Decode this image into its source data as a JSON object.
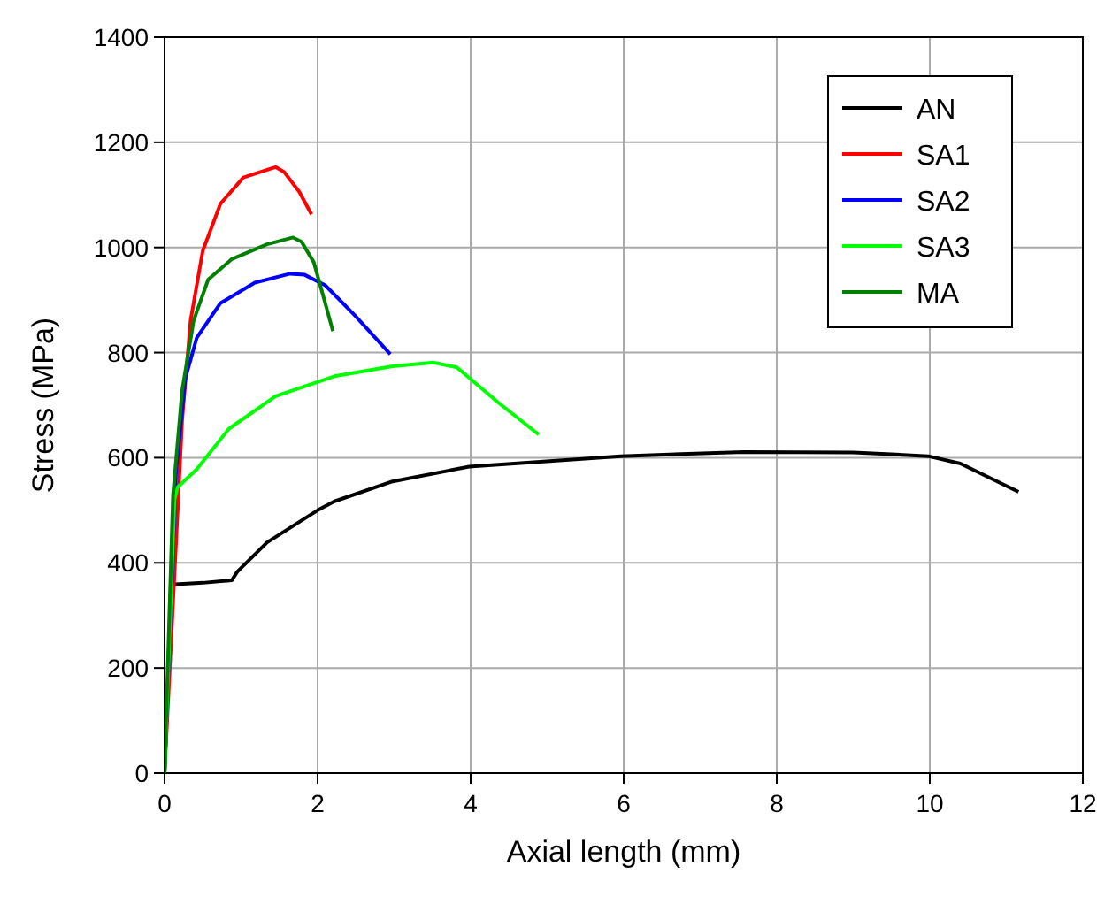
{
  "chart_data": {
    "type": "line",
    "xlabel": "Axial length (mm)",
    "ylabel": "Stress (MPa)",
    "xlim": [
      0,
      12
    ],
    "ylim": [
      0,
      1400
    ],
    "xticks": [
      0,
      2,
      4,
      6,
      8,
      10,
      12
    ],
    "yticks": [
      0,
      200,
      400,
      600,
      800,
      1000,
      1200,
      1400
    ],
    "grid": true,
    "legend": "top right",
    "marker": "none",
    "line_style": "solid",
    "series": [
      {
        "name": "AN",
        "color": "#000000",
        "x": [
          0,
          0.09,
          0.5,
          0.88,
          0.95,
          1.34,
          2,
          2.22,
          2.98,
          3.98,
          5.96,
          7.57,
          9.0,
          9.98,
          10.4,
          11.16
        ],
        "values": [
          0,
          359,
          362,
          367,
          383,
          439,
          500,
          517,
          555,
          583,
          603,
          611,
          610,
          603,
          589,
          535
        ]
      },
      {
        "name": "SA1",
        "color": "#ff0000",
        "x": [
          0,
          0.23,
          0.34,
          0.5,
          0.73,
          1.03,
          1.45,
          1.56,
          1.76,
          1.92
        ],
        "values": [
          0,
          672,
          861,
          994,
          1083,
          1133,
          1153,
          1144,
          1106,
          1063
        ]
      },
      {
        "name": "SA2",
        "color": "#0000ff",
        "x": [
          0,
          0.15,
          0.27,
          0.42,
          0.73,
          1.18,
          1.64,
          1.83,
          2.1,
          2.48,
          2.95
        ],
        "values": [
          0,
          572,
          750,
          828,
          894,
          933,
          950,
          948,
          928,
          872,
          797
        ]
      },
      {
        "name": "SA3",
        "color": "#00ff00",
        "x": [
          0,
          0.13,
          0.17,
          0.42,
          0.84,
          1.45,
          2.22,
          2.98,
          3.52,
          3.82,
          4.36,
          4.89
        ],
        "values": [
          0,
          520,
          544,
          578,
          655,
          717,
          755,
          774,
          781,
          772,
          705,
          644
        ]
      },
      {
        "name": "MA",
        "color": "#008000",
        "x": [
          0,
          0.11,
          0.23,
          0.38,
          0.57,
          0.88,
          1.34,
          1.68,
          1.79,
          1.95,
          2.1,
          2.2
        ],
        "values": [
          0,
          528,
          728,
          861,
          939,
          978,
          1006,
          1019,
          1011,
          972,
          894,
          841
        ]
      }
    ]
  }
}
